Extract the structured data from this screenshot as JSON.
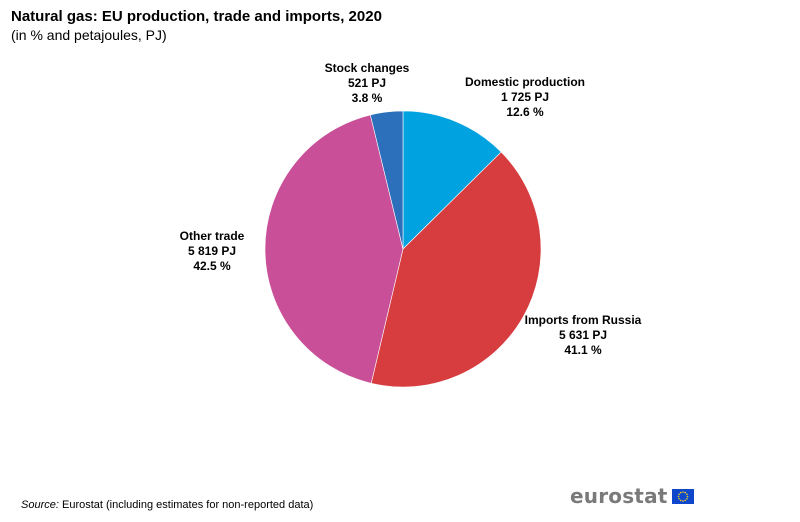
{
  "title": "Natural gas: EU production, trade and imports, 2020",
  "subtitle": "(in % and petajoules, PJ)",
  "source": {
    "prefix": "Source:",
    "text": "Eurostat (including  estimates for non-reported data)"
  },
  "logo": {
    "text": "eurostat",
    "icon": "eu-flag-icon"
  },
  "chart_data": {
    "type": "pie",
    "title": "Natural gas: EU production, trade and imports, 2020",
    "subtitle": "(in % and petajoules, PJ)",
    "slices": [
      {
        "name": "Domestic production",
        "pj_label": "1 725 PJ",
        "pct_label": "12.6 %",
        "pj": 1725,
        "percent": 12.6,
        "color": "#00a3e0"
      },
      {
        "name": "Imports from Russia",
        "pj_label": "5 631 PJ",
        "pct_label": "41.1 %",
        "pj": 5631,
        "percent": 41.1,
        "color": "#d73c3f"
      },
      {
        "name": "Other trade",
        "pj_label": "5 819 PJ",
        "pct_label": "42.5 %",
        "pj": 5819,
        "percent": 42.5,
        "color": "#c94f99"
      },
      {
        "name": "Stock changes",
        "pj_label": "521 PJ",
        "pct_label": "3.8 %",
        "pj": 521,
        "percent": 3.8,
        "color": "#2c6fbb"
      }
    ]
  }
}
